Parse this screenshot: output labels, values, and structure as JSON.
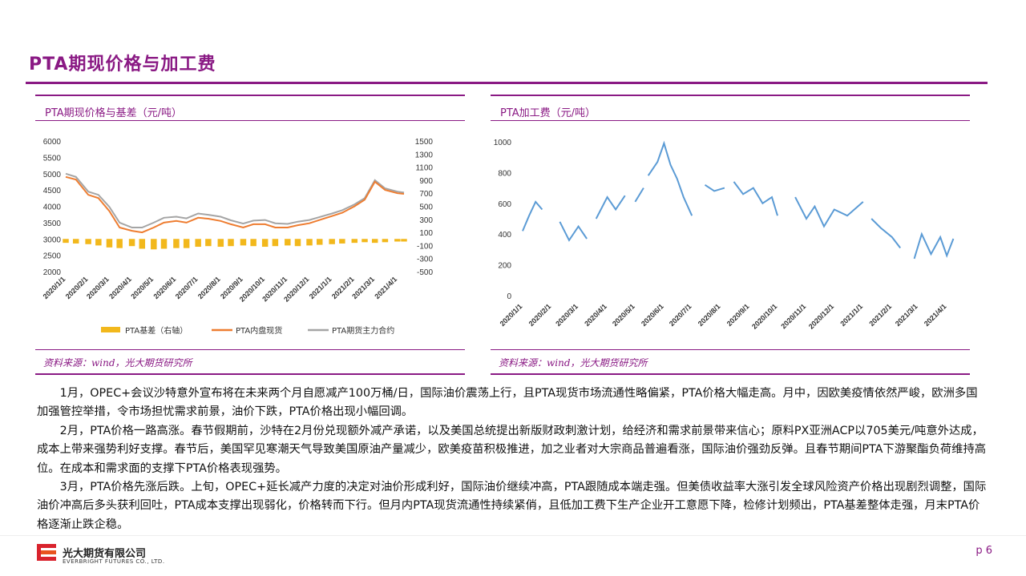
{
  "page": {
    "title": "PTA期现价格与加工费",
    "page_number": "p 6"
  },
  "left_chart": {
    "panel_title": "PTA期现价格与基差（元/吨）",
    "source": "资料来源：wind，光大期货研究所"
  },
  "right_chart": {
    "panel_title": "PTA加工费（元/吨）",
    "source": "资料来源：wind，光大期货研究所"
  },
  "paragraphs": [
    "1月，OPEC+会议沙特意外宣布将在未来两个月自愿减产100万桶/日，国际油价震荡上行，且PTA现货市场流通性略偏紧，PTA价格大幅走高。月中，因欧美疫情依然严峻，欧洲多国加强管控举措，令市场担忧需求前景，油价下跌，PTA价格出现小幅回调。",
    "2月，PTA价格一路高涨。春节假期前，沙特在2月份兑现额外减产承诺，以及美国总统提出新版财政刺激计划，给经济和需求前景带来信心；原料PX亚洲ACP以705美元/吨意外达成，成本上带来强势利好支撑。春节后，美国罕见寒潮天气导致美国原油产量减少，欧美疫苗积极推进，加之业者对大宗商品普遍看涨，国际油价强劲反弹。且春节期间PTA下游聚酯负荷维持高位。在成本和需求面的支撑下PTA价格表现强势。",
    "3月，PTA价格先涨后跌。上旬，OPEC+延长减产力度的决定对油价形成利好，国际油价继续冲高，PTA跟随成本端走强。但美债收益率大涨引发全球风险资产价格出现剧烈调整，国际油价冲高后多头获利回吐，PTA成本支撑出现弱化，价格转而下行。但月内PTA现货流通性持续紧俏，且低加工费下生产企业开工意愿下降，检修计划频出，PTA基差整体走强，月末PTA价格逐渐止跌企稳。"
  ],
  "company": {
    "name_cn": "光大期货有限公司",
    "name_en": "EVERBRIGHT FUTURES CO., LTD."
  },
  "colors": {
    "accent": "#8a1a84",
    "basis_bar": "#f2b81c",
    "spot_line": "#ee7d31",
    "futures_line": "#a5a5a5",
    "margin_line": "#5b9bd5"
  },
  "chart_data": [
    {
      "type": "bar+line",
      "title": "PTA期现价格与基差（元/吨）",
      "x_ticks": [
        "2020/1/1",
        "2020/2/1",
        "2020/3/1",
        "2020/4/1",
        "2020/5/1",
        "2020/6/1",
        "2020/7/1",
        "2020/8/1",
        "2020/9/1",
        "2020/10/1",
        "2020/11/1",
        "2020/12/1",
        "2021/1/1",
        "2021/2/1",
        "2021/3/1",
        "2021/4/1"
      ],
      "y_left_ticks": [
        "2000",
        "2500",
        "3000",
        "3500",
        "4000",
        "4500",
        "5000",
        "5500",
        "6000"
      ],
      "y_right_ticks": [
        "-500",
        "-300",
        "-100",
        "100",
        "300",
        "500",
        "700",
        "900",
        "1100",
        "1300",
        "1500"
      ],
      "ylim_left": [
        2000,
        6000
      ],
      "ylim_right": [
        -500,
        1500
      ],
      "legend": [
        "PTA基差（右轴）",
        "PTA内盘现货",
        "PTA期货主力合约"
      ],
      "legend_position": "bottom",
      "x": [
        "2020/1/1",
        "2020/1/15",
        "2020/2/1",
        "2020/2/15",
        "2020/3/1",
        "2020/3/15",
        "2020/4/1",
        "2020/4/15",
        "2020/5/1",
        "2020/5/15",
        "2020/6/1",
        "2020/6/15",
        "2020/7/1",
        "2020/7/15",
        "2020/8/1",
        "2020/8/15",
        "2020/9/1",
        "2020/9/15",
        "2020/10/1",
        "2020/10/15",
        "2020/11/1",
        "2020/11/15",
        "2020/12/1",
        "2020/12/15",
        "2021/1/1",
        "2021/1/15",
        "2021/2/1",
        "2021/2/15",
        "2021/3/1",
        "2021/3/15",
        "2021/4/1",
        "2021/4/10"
      ],
      "series": [
        {
          "name": "PTA基差（右轴）",
          "axis": "right",
          "values": [
            -60,
            -70,
            -80,
            -100,
            -130,
            -140,
            -110,
            -150,
            -160,
            -150,
            -140,
            -140,
            -120,
            -110,
            -120,
            -110,
            -100,
            -110,
            -120,
            -110,
            -100,
            -110,
            -100,
            -90,
            -80,
            -70,
            -60,
            -50,
            -60,
            -50,
            -40,
            -40
          ]
        },
        {
          "name": "PTA内盘现货",
          "axis": "left",
          "values": [
            4900,
            4820,
            4350,
            4250,
            3850,
            3350,
            3250,
            3200,
            3350,
            3500,
            3550,
            3500,
            3650,
            3620,
            3550,
            3450,
            3350,
            3450,
            3450,
            3350,
            3350,
            3420,
            3480,
            3580,
            3700,
            3800,
            4000,
            4200,
            4750,
            4500,
            4400,
            4380
          ]
        },
        {
          "name": "PTA期货主力合约",
          "axis": "left",
          "values": [
            5000,
            4900,
            4450,
            4350,
            3980,
            3500,
            3350,
            3350,
            3500,
            3650,
            3680,
            3630,
            3780,
            3740,
            3680,
            3570,
            3470,
            3560,
            3580,
            3480,
            3460,
            3530,
            3580,
            3670,
            3780,
            3880,
            4060,
            4250,
            4800,
            4550,
            4450,
            4420
          ]
        }
      ]
    },
    {
      "type": "line",
      "title": "PTA加工费（元/吨）",
      "x_ticks": [
        "2020/1/1",
        "2020/2/1",
        "2020/3/1",
        "2020/4/1",
        "2020/5/1",
        "2020/6/1",
        "2020/7/1",
        "2020/8/1",
        "2020/9/1",
        "2020/10/1",
        "2020/11/1",
        "2020/12/1",
        "2021/1/1",
        "2021/2/1",
        "2021/3/1",
        "2021/4/1"
      ],
      "y_ticks": [
        "0",
        "200",
        "400",
        "600",
        "800",
        "1000"
      ],
      "ylim": [
        0,
        1000
      ],
      "series": [
        {
          "name": "",
          "segments": [
            {
              "x": [
                "2020/1/1",
                "2020/1/8",
                "2020/1/15",
                "2020/1/22"
              ],
              "y": [
                420,
                520,
                610,
                560
              ]
            },
            {
              "x": [
                "2020/2/10",
                "2020/2/20",
                "2020/3/1",
                "2020/3/10"
              ],
              "y": [
                480,
                360,
                450,
                370
              ]
            },
            {
              "x": [
                "2020/3/20",
                "2020/4/1",
                "2020/4/10",
                "2020/4/20"
              ],
              "y": [
                500,
                640,
                560,
                650
              ]
            },
            {
              "x": [
                "2020/5/1",
                "2020/5/10"
              ],
              "y": [
                610,
                700
              ]
            },
            {
              "x": [
                "2020/5/15",
                "2020/5/25",
                "2020/6/1",
                "2020/6/8",
                "2020/6/15",
                "2020/6/22",
                "2020/7/1"
              ],
              "y": [
                780,
                870,
                990,
                850,
                760,
                640,
                520
              ]
            },
            {
              "x": [
                "2020/7/15",
                "2020/7/25",
                "2020/8/5"
              ],
              "y": [
                720,
                680,
                700
              ]
            },
            {
              "x": [
                "2020/8/15",
                "2020/8/25",
                "2020/9/5",
                "2020/9/15",
                "2020/9/25",
                "2020/10/1"
              ],
              "y": [
                740,
                660,
                700,
                600,
                640,
                520
              ]
            },
            {
              "x": [
                "2020/10/20",
                "2020/11/1",
                "2020/11/10",
                "2020/11/20",
                "2020/12/1",
                "2020/12/15",
                "2021/1/1"
              ],
              "y": [
                640,
                500,
                580,
                450,
                560,
                520,
                610
              ]
            },
            {
              "x": [
                "2021/1/10",
                "2021/1/20",
                "2021/2/1",
                "2021/2/10"
              ],
              "y": [
                500,
                440,
                380,
                310
              ]
            },
            {
              "x": [
                "2021/2/25",
                "2021/3/5",
                "2021/3/15",
                "2021/3/25",
                "2021/4/1",
                "2021/4/8"
              ],
              "y": [
                240,
                400,
                270,
                380,
                260,
                370
              ]
            }
          ]
        }
      ]
    }
  ]
}
